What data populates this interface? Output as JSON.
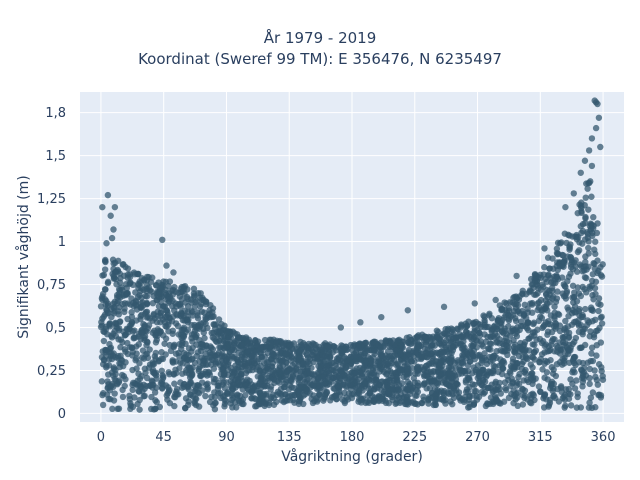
{
  "chart_data": {
    "type": "scatter",
    "title_line1": "År 1979 - 2019",
    "title_line2": "Koordinat (Sweref 99 TM): E 356476, N 6235497",
    "xlabel": "Vågriktning (grader)",
    "ylabel": "Signifikant våghöjd (m)",
    "xlim": [
      -15,
      375
    ],
    "ylim": [
      -0.05,
      1.87
    ],
    "x_ticks": [
      0,
      45,
      90,
      135,
      180,
      225,
      270,
      315,
      360
    ],
    "x_tick_labels": [
      "0",
      "45",
      "90",
      "135",
      "180",
      "225",
      "270",
      "315",
      "360"
    ],
    "y_ticks": [
      0,
      0.25,
      0.5,
      0.75,
      1,
      1.25,
      1.5,
      1.75
    ],
    "y_tick_labels": [
      "0",
      "0,25",
      "0,5",
      "0,75",
      "1",
      "1,25",
      "1,5",
      "1,8"
    ],
    "grid": true,
    "background_color": "#e5ecf6",
    "marker_color": "#34586f",
    "x_range_observed": [
      0,
      360
    ],
    "envelope": {
      "x": [
        0,
        20,
        45,
        70,
        80,
        90,
        100,
        135,
        180,
        225,
        250,
        270,
        300,
        320,
        340,
        350,
        355,
        360
      ],
      "y_max": [
        0.95,
        0.85,
        0.78,
        0.72,
        0.62,
        0.5,
        0.45,
        0.42,
        0.4,
        0.45,
        0.5,
        0.55,
        0.7,
        0.9,
        1.15,
        1.4,
        1.2,
        0.9
      ],
      "y_min": [
        0.02,
        0.02,
        0.02,
        0.02,
        0.02,
        0.03,
        0.03,
        0.05,
        0.06,
        0.05,
        0.04,
        0.03,
        0.03,
        0.02,
        0.02,
        0.02,
        0.02,
        0.02
      ]
    },
    "outliers": [
      {
        "x": 1,
        "y": 1.2
      },
      {
        "x": 5,
        "y": 1.27
      },
      {
        "x": 7,
        "y": 1.15
      },
      {
        "x": 9,
        "y": 1.07
      },
      {
        "x": 10,
        "y": 1.2
      },
      {
        "x": 8,
        "y": 1.02
      },
      {
        "x": 4,
        "y": 0.99
      },
      {
        "x": 44,
        "y": 1.01
      },
      {
        "x": 47,
        "y": 0.86
      },
      {
        "x": 52,
        "y": 0.82
      },
      {
        "x": 172,
        "y": 0.5
      },
      {
        "x": 186,
        "y": 0.53
      },
      {
        "x": 201,
        "y": 0.56
      },
      {
        "x": 220,
        "y": 0.6
      },
      {
        "x": 246,
        "y": 0.62
      },
      {
        "x": 268,
        "y": 0.64
      },
      {
        "x": 283,
        "y": 0.66
      },
      {
        "x": 298,
        "y": 0.8
      },
      {
        "x": 318,
        "y": 0.96
      },
      {
        "x": 333,
        "y": 1.2
      },
      {
        "x": 339,
        "y": 1.28
      },
      {
        "x": 344,
        "y": 1.4
      },
      {
        "x": 347,
        "y": 1.47
      },
      {
        "x": 350,
        "y": 1.53
      },
      {
        "x": 352,
        "y": 1.6
      },
      {
        "x": 354,
        "y": 1.82
      },
      {
        "x": 355,
        "y": 1.81
      },
      {
        "x": 356,
        "y": 1.8
      },
      {
        "x": 357,
        "y": 1.72
      },
      {
        "x": 355,
        "y": 1.66
      },
      {
        "x": 358,
        "y": 1.55
      },
      {
        "x": 352,
        "y": 1.44
      }
    ]
  }
}
